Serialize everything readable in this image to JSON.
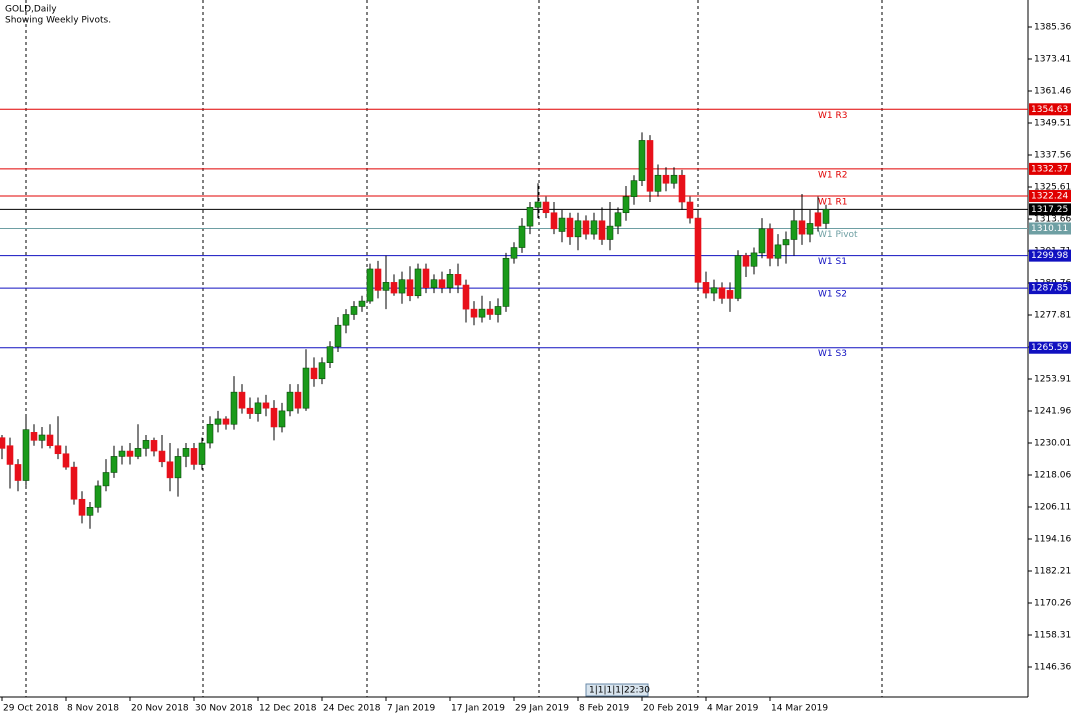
{
  "chart_data": {
    "type": "candlestick",
    "title": "GOLD,Daily",
    "subtitle": "Showing Weekly Pivots.",
    "categories": [
      "29 Oct 2018",
      null,
      null,
      null,
      null,
      null,
      null,
      null,
      "8 Nov 2018",
      null,
      null,
      null,
      null,
      null,
      null,
      null,
      "20 Nov 2018",
      null,
      null,
      null,
      null,
      null,
      null,
      null,
      "30 Nov 2018",
      null,
      null,
      null,
      null,
      null,
      null,
      null,
      "12 Dec 2018",
      null,
      null,
      null,
      null,
      null,
      null,
      null,
      "24 Dec 2018",
      null,
      null,
      null,
      null,
      null,
      null,
      null,
      "7 Jan 2019",
      null,
      null,
      null,
      null,
      null,
      null,
      null,
      "17 Jan 2019",
      null,
      null,
      null,
      null,
      null,
      null,
      null,
      "29 Jan 2019",
      null,
      null,
      null,
      null,
      null,
      null,
      null,
      "8 Feb 2019",
      null,
      null,
      null,
      null,
      null,
      null,
      null,
      "20 Feb 2019",
      null,
      null,
      null,
      null,
      null,
      null,
      null,
      "4 Mar 2019",
      null,
      null,
      null,
      null,
      null,
      null,
      null,
      "14 Mar 2019",
      null,
      null,
      null,
      null,
      null,
      null,
      null
    ],
    "open": [
      1232,
      1229,
      1222,
      1216,
      1234,
      1231,
      1233,
      1229,
      1226,
      1221,
      1209,
      1203,
      1206,
      1214,
      1219,
      1225,
      1227,
      1225,
      1228,
      1231,
      1227,
      1223,
      1217,
      1225,
      1228,
      1222,
      1230,
      1237,
      1239,
      1237,
      1249,
      1243,
      1241,
      1245,
      1243,
      1236,
      1242,
      1249,
      1243,
      1258,
      1254,
      1260,
      1266,
      1274,
      1278,
      1281,
      1283,
      1295,
      1287,
      1290,
      1286,
      1291,
      1285,
      1295,
      1288,
      1291,
      1288,
      1293,
      1289,
      1280,
      1277,
      1280,
      1278,
      1281,
      1299,
      1303,
      1311,
      1318,
      1320,
      1316,
      1309,
      1314,
      1307,
      1313,
      1308,
      1313,
      1306,
      1311,
      1316,
      1322,
      1328,
      1343,
      1324,
      1330,
      1327,
      1330,
      1320,
      1314,
      1290,
      1286,
      1288,
      1287,
      1284,
      1300,
      1296,
      1301,
      1310,
      1299,
      1304,
      1306,
      1313,
      1308,
      1316,
      1312
    ],
    "high": [
      1233,
      1232,
      1224,
      1240,
      1237,
      1236,
      1237,
      1240,
      1229,
      1223,
      1212,
      1208,
      1216,
      1224,
      1229,
      1229,
      1230,
      1237,
      1233,
      1232,
      1233,
      1230,
      1228,
      1230,
      1230,
      1232,
      1240,
      1242,
      1240,
      1255,
      1252,
      1247,
      1247,
      1248,
      1246,
      1245,
      1252,
      1252,
      1265,
      1262,
      1262,
      1268,
      1277,
      1280,
      1283,
      1285,
      1297,
      1298,
      1300,
      1293,
      1294,
      1296,
      1297,
      1297,
      1293,
      1294,
      1295,
      1297,
      1291,
      1283,
      1285,
      1283,
      1284,
      1301,
      1305,
      1314,
      1320,
      1327,
      1322,
      1320,
      1317,
      1316,
      1316,
      1315,
      1316,
      1318,
      1320,
      1318,
      1326,
      1330,
      1346,
      1345,
      1334,
      1333,
      1333,
      1332,
      1322,
      1316,
      1294,
      1291,
      1290,
      1290,
      1302,
      1301,
      1303,
      1314,
      1312,
      1308,
      1309,
      1317,
      1323,
      1317,
      1322,
      1319
    ],
    "low": [
      1224,
      1213,
      1212,
      1214,
      1229,
      1228,
      1228,
      1224,
      1220,
      1207,
      1200,
      1198,
      1204,
      1212,
      1217,
      1222,
      1222,
      1224,
      1225,
      1225,
      1221,
      1212,
      1210,
      1221,
      1220,
      1220,
      1228,
      1234,
      1235,
      1235,
      1241,
      1239,
      1238,
      1240,
      1231,
      1234,
      1240,
      1241,
      1242,
      1251,
      1252,
      1258,
      1264,
      1271,
      1276,
      1279,
      1282,
      1284,
      1280,
      1285,
      1282,
      1283,
      1284,
      1286,
      1286,
      1286,
      1286,
      1286,
      1275,
      1274,
      1275,
      1276,
      1275,
      1279,
      1297,
      1301,
      1308,
      1314,
      1314,
      1308,
      1305,
      1304,
      1302,
      1306,
      1306,
      1304,
      1302,
      1308,
      1313,
      1319,
      1326,
      1320,
      1322,
      1324,
      1325,
      1317,
      1312,
      1287,
      1284,
      1283,
      1282,
      1279,
      1283,
      1292,
      1293,
      1299,
      1296,
      1296,
      1297,
      1300,
      1304,
      1305,
      1309,
      1310
    ],
    "close": [
      1228,
      1222,
      1216,
      1235,
      1231,
      1233,
      1229,
      1226,
      1221,
      1209,
      1203,
      1206,
      1214,
      1219,
      1225,
      1227,
      1225,
      1228,
      1231,
      1227,
      1223,
      1217,
      1225,
      1228,
      1222,
      1230,
      1237,
      1239,
      1237,
      1249,
      1243,
      1241,
      1245,
      1243,
      1236,
      1242,
      1249,
      1243,
      1258,
      1254,
      1260,
      1266,
      1274,
      1278,
      1281,
      1283,
      1295,
      1287,
      1290,
      1286,
      1291,
      1285,
      1295,
      1288,
      1291,
      1288,
      1293,
      1289,
      1280,
      1277,
      1280,
      1278,
      1281,
      1299,
      1303,
      1311,
      1318,
      1320,
      1316,
      1310,
      1314,
      1307,
      1313,
      1308,
      1313,
      1306,
      1311,
      1316,
      1322,
      1328,
      1343,
      1324,
      1330,
      1327,
      1330,
      1320,
      1314,
      1290,
      1286,
      1288,
      1284,
      1284,
      1300,
      1296,
      1301,
      1310,
      1299,
      1304,
      1306,
      1313,
      1308,
      1312,
      1311,
      1317.25
    ],
    "up_color": "#1a9a1a",
    "down_color": "#e8101a",
    "ylim": [
      1135.16,
      1395.44
    ],
    "yticks": [
      1146.36,
      1158.31,
      1170.26,
      1182.21,
      1194.16,
      1206.11,
      1218.06,
      1230.01,
      1241.96,
      1253.91,
      1265.86,
      1277.81,
      1289.76,
      1301.71,
      1313.66,
      1325.61,
      1337.56,
      1349.51,
      1361.46,
      1373.41,
      1385.36
    ],
    "levels": [
      {
        "name": "W1 R3",
        "value": 1354.63,
        "color": "#e00000"
      },
      {
        "name": "W1 R2",
        "value": 1332.37,
        "color": "#e00000"
      },
      {
        "name": "W1 R1",
        "value": 1322.24,
        "color": "#e00000"
      },
      {
        "name": "W1 Pivot",
        "value": 1310.11,
        "color": "#6e9fa3"
      },
      {
        "name": "W1 S1",
        "value": 1299.98,
        "color": "#1010c0"
      },
      {
        "name": "W1 S2",
        "value": 1287.85,
        "color": "#1010c0"
      },
      {
        "name": "W1 S3",
        "value": 1265.59,
        "color": "#1010c0"
      }
    ],
    "current_price": {
      "value": 1317.25,
      "color": "#000000"
    },
    "scroll_label": "1|1|1|1|22:30"
  }
}
